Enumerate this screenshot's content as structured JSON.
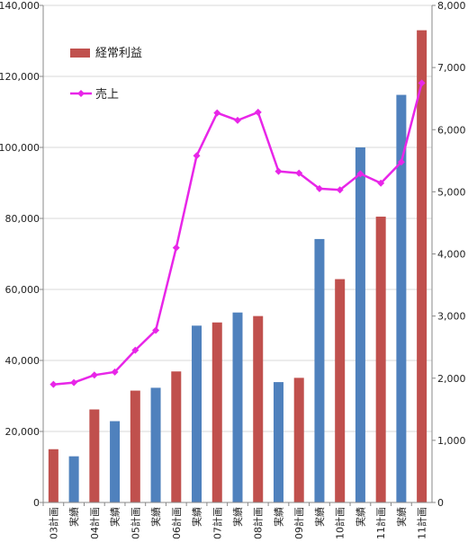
{
  "chart_data": {
    "type": "bar",
    "categories": [
      "03計画",
      "実績",
      "04計画",
      "実績",
      "05計画",
      "実績",
      "06計画",
      "実績",
      "07計画",
      "実績",
      "08計画",
      "実績",
      "09計画",
      "実績",
      "10計画",
      "実績",
      "11計画",
      "実績",
      "11計画"
    ],
    "kinds": [
      "plan",
      "actual",
      "plan",
      "actual",
      "plan",
      "actual",
      "plan",
      "actual",
      "plan",
      "actual",
      "plan",
      "actual",
      "plan",
      "actual",
      "plan",
      "actual",
      "plan",
      "actual",
      "plan"
    ],
    "series": [
      {
        "name": "経常利益",
        "type": "bar",
        "axis": "left",
        "values": [
          1500,
          1300,
          2620,
          2290,
          3150,
          3230,
          3690,
          4980,
          5070,
          5350,
          5250,
          3390,
          3510,
          7420,
          6290,
          10000,
          8050,
          11480,
          13300
        ]
      },
      {
        "name": "売上",
        "type": "line",
        "axis": "right",
        "values": [
          1900,
          1930,
          2050,
          2100,
          2450,
          2770,
          4100,
          5580,
          6270,
          6150,
          6280,
          5330,
          5300,
          5050,
          5030,
          5290,
          5140,
          5480,
          6750
        ]
      }
    ],
    "y_left": {
      "min": 0,
      "max": 140000,
      "ticks": [
        "0",
        "20,000",
        "40,000",
        "60,000",
        "80,000",
        "100,000",
        "120,000",
        "140,000"
      ]
    },
    "y_right": {
      "min": 0,
      "max": 8000,
      "ticks": [
        "0",
        "1,000",
        "2,000",
        "3,000",
        "4,000",
        "5,000",
        "6,000",
        "7,000",
        "8,000"
      ]
    },
    "bar_unit_scale": 10,
    "grid": true,
    "legend": "top-left",
    "colors": {
      "plan": "#c0504d",
      "actual": "#4f81bd",
      "line": "#e826e8",
      "grid": "#d9d9d9"
    }
  }
}
